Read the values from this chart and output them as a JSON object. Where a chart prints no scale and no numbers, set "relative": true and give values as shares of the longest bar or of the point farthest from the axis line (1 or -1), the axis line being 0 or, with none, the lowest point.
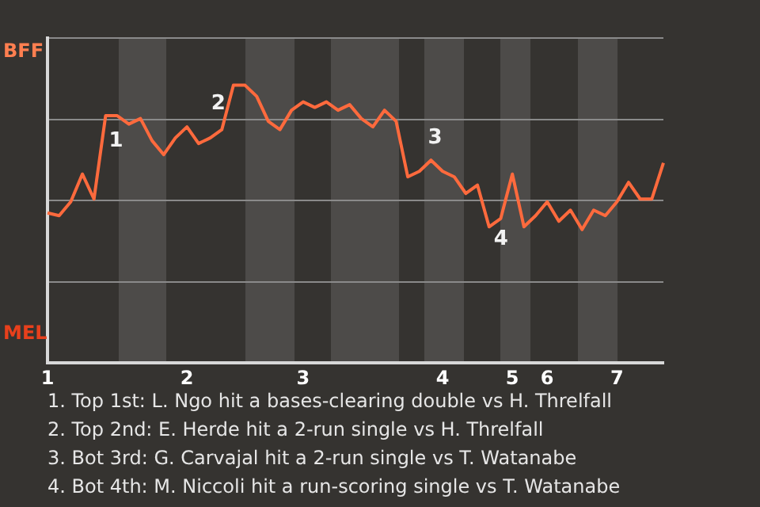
{
  "chart_data": {
    "type": "line",
    "relative": true,
    "categories": [
      "1",
      null,
      null,
      null,
      null,
      null,
      null,
      null,
      null,
      null,
      null,
      null,
      "2",
      null,
      null,
      null,
      null,
      null,
      null,
      null,
      null,
      null,
      "3",
      null,
      null,
      null,
      null,
      null,
      null,
      null,
      null,
      null,
      null,
      null,
      "4",
      null,
      null,
      null,
      null,
      null,
      "5",
      null,
      null,
      "6",
      null,
      null,
      null,
      null,
      null,
      "7",
      null,
      null,
      null,
      null
    ],
    "series": [
      {
        "color": "#ff6a3d",
        "values": [
          0.54,
          0.53,
          0.58,
          0.68,
          0.59,
          0.89,
          0.89,
          0.86,
          0.88,
          0.8,
          0.75,
          0.81,
          0.85,
          0.79,
          0.81,
          0.84,
          1,
          1,
          0.96,
          0.87,
          0.84,
          0.91,
          0.94,
          0.92,
          0.94,
          0.91,
          0.93,
          0.88,
          0.85,
          0.91,
          0.87,
          0.67,
          0.69,
          0.73,
          0.69,
          0.67,
          0.61,
          0.64,
          0.49,
          0.52,
          0.68,
          0.49,
          0.53,
          0.58,
          0.51,
          0.55,
          0.48,
          0.55,
          0.53,
          0.58,
          0.65,
          0.59,
          0.59,
          0.72
        ]
      }
    ],
    "grid": "y",
    "marker": "none",
    "annotations": [
      "BFF",
      "MEL",
      "1",
      "2",
      "3",
      "4",
      "1. Top 1st: L. Ngo hit a bases-clearing double vs H. Threlfall",
      "2. Top 2nd: E. Herde hit a 2-run single vs H. Threlfall",
      "3. Bot 3rd: G. Carvajal hit a 2-run single vs T. Watanabe",
      "4. Bot 4th: M. Niccoli hit a run-scoring single vs T. Watanabe"
    ]
  }
}
